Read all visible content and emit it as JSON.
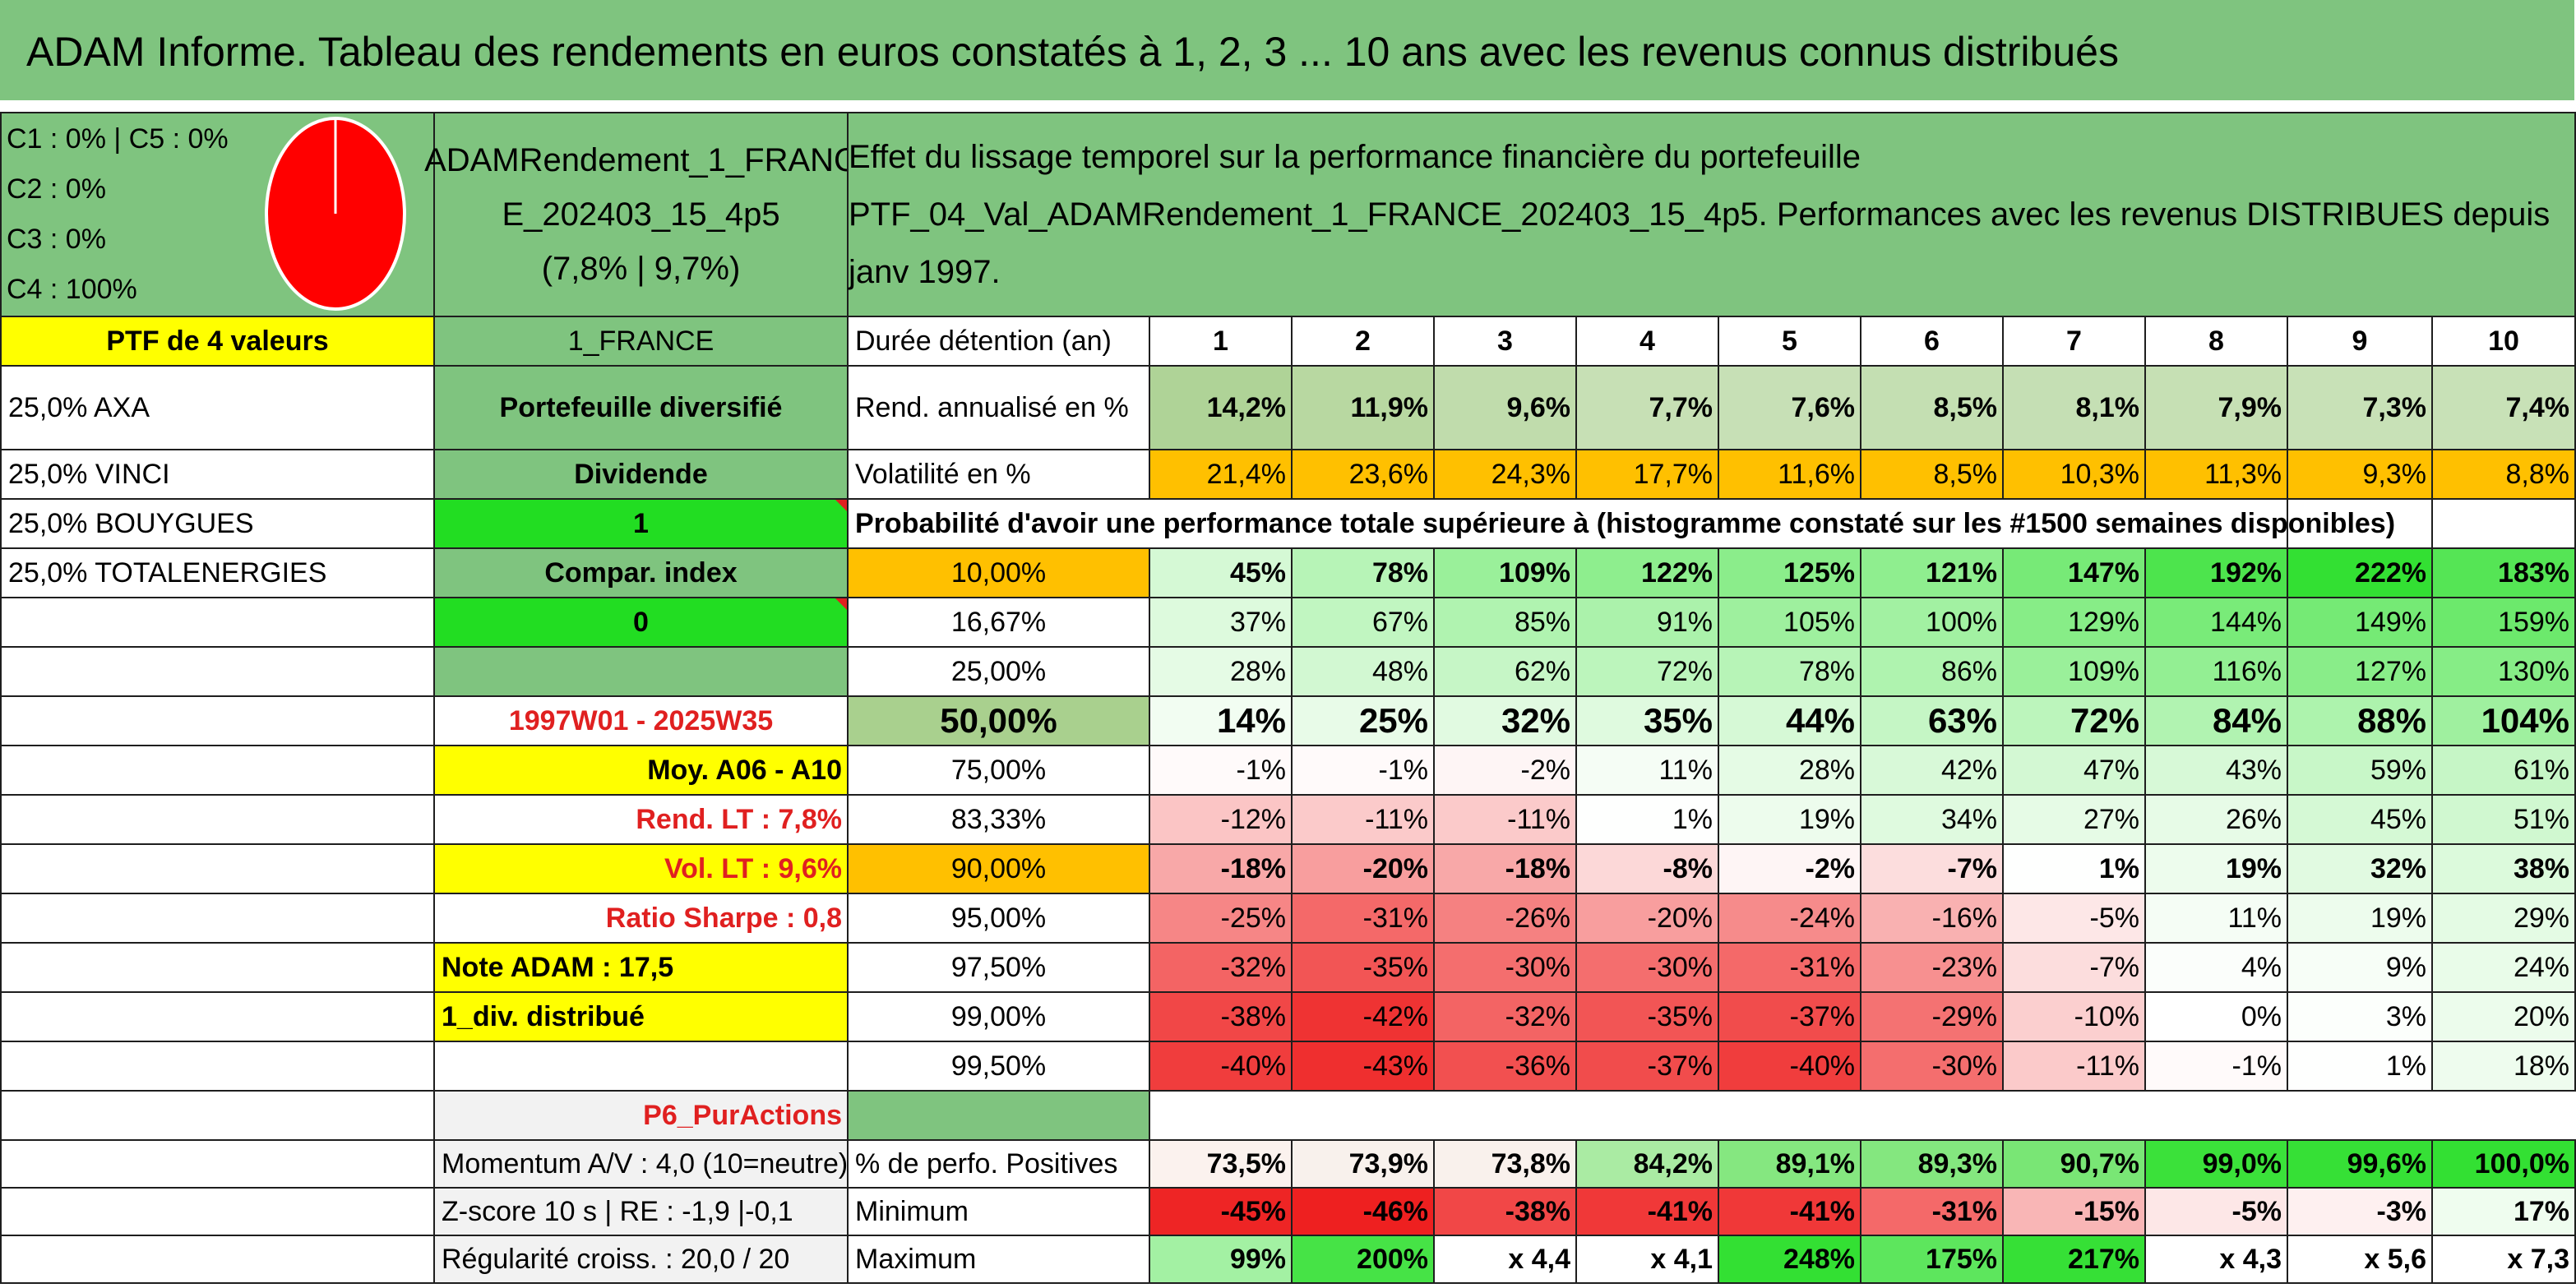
{
  "title": "ADAM Informe. Tableau des rendements en euros constatés à 1, 2, 3 ... 10 ans avec les revenus connus distribués",
  "colors": {
    "green_header": "#7fc47f",
    "yellow": "#ffff00",
    "orange": "#ffc000",
    "bright_green": "#22dd22",
    "red_text": "#e02020"
  },
  "left_panel": {
    "allocation": [
      "C1 : 0% | C5 : 0%",
      "C2 : 0%",
      "C3 : 0%",
      "C4 : 100%"
    ],
    "pie_icon": "red-circle-pie",
    "ptf_label": "PTF de 4 valeurs",
    "holdings": [
      "25,0% AXA",
      "25,0% VINCI",
      "25,0% BOUYGUES",
      "25,0% TOTALENERGIES"
    ]
  },
  "mid_panel": {
    "name_line1": "ADAMRendement_1_FRANC",
    "name_line2": "E_202403_15_4p5",
    "name_line3": "(7,8% | 9,7%)",
    "country": "1_FRANCE",
    "type": "Portefeuille diversifié",
    "dividende_label": "Dividende",
    "dividende_value": "1",
    "compar_label": "Compar. index",
    "compar_value": "0",
    "period": "1997W01 - 2025W35",
    "moy": "Moy. A06 - A10",
    "rend_lt": "Rend. LT : 7,8%",
    "vol_lt": "Vol. LT : 9,6%",
    "sharpe": "Ratio Sharpe : 0,8",
    "note": "Note ADAM : 17,5",
    "div": "1_div. distribué",
    "category": "P6_PurActions",
    "momentum": "Momentum A/V : 4,0 (10=neutre)",
    "zscore": "Z-score 10 s | RE : -1,9 |-0,1",
    "regularite": "Régularité croiss. : 20,0 / 20"
  },
  "header": {
    "line1": "Effet du lissage temporel sur la performance financière du portefeuille",
    "line2": "PTF_04_Val_ADAMRendement_1_FRANCE_202403_15_4p5. Performances avec les revenus DISTRIBUES depuis janv 1997."
  },
  "table": {
    "duration_label": "Durée détention (an)",
    "years": [
      "1",
      "2",
      "3",
      "4",
      "5",
      "6",
      "7",
      "8",
      "9",
      "10"
    ],
    "rend_label": "Rend. annualisé en %",
    "rend": [
      "14,2%",
      "11,9%",
      "9,6%",
      "7,7%",
      "7,6%",
      "8,5%",
      "8,1%",
      "7,9%",
      "7,3%",
      "7,4%"
    ],
    "vol_label": "Volatilité en %",
    "vol": [
      "21,4%",
      "23,6%",
      "24,3%",
      "17,7%",
      "11,6%",
      "8,5%",
      "10,3%",
      "11,3%",
      "9,3%",
      "8,8%"
    ],
    "prob_title": "Probabilité d'avoir une performance totale supérieure à (histogramme constaté sur les #1500 semaines disponibles)",
    "prob_rows": [
      {
        "label": "10,00%",
        "values": [
          "45%",
          "78%",
          "109%",
          "122%",
          "125%",
          "121%",
          "147%",
          "192%",
          "222%",
          "183%"
        ]
      },
      {
        "label": "16,67%",
        "values": [
          "37%",
          "67%",
          "85%",
          "91%",
          "105%",
          "100%",
          "129%",
          "144%",
          "149%",
          "159%"
        ]
      },
      {
        "label": "25,00%",
        "values": [
          "28%",
          "48%",
          "62%",
          "72%",
          "78%",
          "86%",
          "109%",
          "116%",
          "127%",
          "130%"
        ]
      },
      {
        "label": "50,00%",
        "values": [
          "14%",
          "25%",
          "32%",
          "35%",
          "44%",
          "63%",
          "72%",
          "84%",
          "88%",
          "104%"
        ]
      },
      {
        "label": "75,00%",
        "values": [
          "-1%",
          "-1%",
          "-2%",
          "11%",
          "28%",
          "42%",
          "47%",
          "43%",
          "59%",
          "61%"
        ]
      },
      {
        "label": "83,33%",
        "values": [
          "-12%",
          "-11%",
          "-11%",
          "1%",
          "19%",
          "34%",
          "27%",
          "26%",
          "45%",
          "51%"
        ]
      },
      {
        "label": "90,00%",
        "values": [
          "-18%",
          "-20%",
          "-18%",
          "-8%",
          "-2%",
          "-7%",
          "1%",
          "19%",
          "32%",
          "38%"
        ]
      },
      {
        "label": "95,00%",
        "values": [
          "-25%",
          "-31%",
          "-26%",
          "-20%",
          "-24%",
          "-16%",
          "-5%",
          "11%",
          "19%",
          "29%"
        ]
      },
      {
        "label": "97,50%",
        "values": [
          "-32%",
          "-35%",
          "-30%",
          "-30%",
          "-31%",
          "-23%",
          "-7%",
          "4%",
          "9%",
          "24%"
        ]
      },
      {
        "label": "99,00%",
        "values": [
          "-38%",
          "-42%",
          "-32%",
          "-35%",
          "-37%",
          "-29%",
          "-10%",
          "0%",
          "3%",
          "20%"
        ]
      },
      {
        "label": "99,50%",
        "values": [
          "-40%",
          "-43%",
          "-36%",
          "-37%",
          "-40%",
          "-30%",
          "-11%",
          "-1%",
          "1%",
          "18%"
        ]
      }
    ],
    "pos_label": "% de perfo. Positives",
    "pos": [
      "73,5%",
      "73,9%",
      "73,8%",
      "84,2%",
      "89,1%",
      "89,3%",
      "90,7%",
      "99,0%",
      "99,6%",
      "100,0%"
    ],
    "min_label": "Minimum",
    "min": [
      "-45%",
      "-46%",
      "-38%",
      "-41%",
      "-41%",
      "-31%",
      "-15%",
      "-5%",
      "-3%",
      "17%"
    ],
    "max_label": "Maximum",
    "max": [
      "99%",
      "200%",
      "x 4,4",
      "x 4,1",
      "248%",
      "175%",
      "217%",
      "x 4,3",
      "x 5,6",
      "x 7,3"
    ]
  }
}
